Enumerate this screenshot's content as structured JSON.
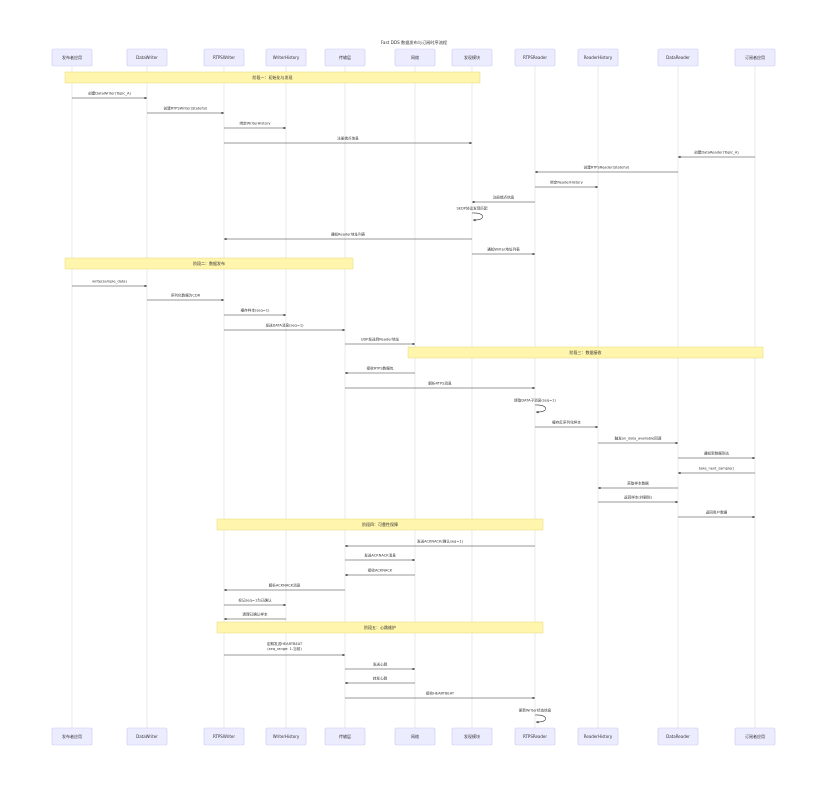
{
  "diagram": {
    "title": "Fast DDS 数据发布与订阅时序流程",
    "actors": [
      {
        "id": "pub_app",
        "label": "发布者应用"
      },
      {
        "id": "datawriter",
        "label": "DataWriter"
      },
      {
        "id": "rtpswriter",
        "label": "RTPSWriter"
      },
      {
        "id": "writerhistory",
        "label": "WriterHistory"
      },
      {
        "id": "transport",
        "label": "传输层"
      },
      {
        "id": "network",
        "label": "网络"
      },
      {
        "id": "discovery",
        "label": "发现模块"
      },
      {
        "id": "rtpsreader",
        "label": "RTPSReader"
      },
      {
        "id": "readerhistory",
        "label": "ReaderHistory"
      },
      {
        "id": "datareader",
        "label": "DataReader"
      },
      {
        "id": "sub_app",
        "label": "订阅者应用"
      }
    ],
    "steps": [
      {
        "kind": "phase",
        "label": "阶段一：初始化与发现",
        "from": "pub_app",
        "to": "discovery"
      },
      {
        "kind": "msg",
        "from": "pub_app",
        "to": "datawriter",
        "label": "创建DataWriter(Topic_A)"
      },
      {
        "kind": "msg",
        "from": "datawriter",
        "to": "rtpswriter",
        "label": "创建RTPSWriter(Stateful)"
      },
      {
        "kind": "msg",
        "from": "rtpswriter",
        "to": "writerhistory",
        "label": "绑定WriterHistory"
      },
      {
        "kind": "msg",
        "from": "rtpswriter",
        "to": "discovery",
        "label": "注册端点信息"
      },
      {
        "kind": "msg",
        "from": "sub_app",
        "to": "datareader",
        "label": "创建DataReader(Topic_A)"
      },
      {
        "kind": "msg",
        "from": "datareader",
        "to": "rtpsreader",
        "label": "创建RTPSReader(Stateful)"
      },
      {
        "kind": "msg",
        "from": "rtpsreader",
        "to": "readerhistory",
        "label": "绑定ReaderHistory"
      },
      {
        "kind": "msg",
        "from": "rtpsreader",
        "to": "discovery",
        "label": "注册端点信息"
      },
      {
        "kind": "self",
        "at": "discovery",
        "label": "SEDP协议发现匹配"
      },
      {
        "kind": "msg",
        "from": "discovery",
        "to": "rtpswriter",
        "label": "通知Reader地址列表"
      },
      {
        "kind": "msg",
        "from": "discovery",
        "to": "rtpsreader",
        "label": "通知Writer地址列表"
      },
      {
        "kind": "phase",
        "label": "阶段二：数据发布",
        "from": "pub_app",
        "to": "transport"
      },
      {
        "kind": "msg",
        "from": "pub_app",
        "to": "datawriter",
        "label": "write(sample_data)"
      },
      {
        "kind": "msg",
        "from": "datawriter",
        "to": "rtpswriter",
        "label": "序列化数据为CDR"
      },
      {
        "kind": "msg",
        "from": "rtpswriter",
        "to": "writerhistory",
        "label": "缓存样本(seq=1)"
      },
      {
        "kind": "msg",
        "from": "rtpswriter",
        "to": "transport",
        "label": "发送DATA消息(seq=1)"
      },
      {
        "kind": "msg",
        "from": "transport",
        "to": "network",
        "label": "UDP发送到Reader地址"
      },
      {
        "kind": "phase",
        "label": "阶段三：数据接收",
        "from": "network",
        "to": "sub_app"
      },
      {
        "kind": "msg",
        "from": "network",
        "to": "transport",
        "label": "接收RTPS数据包"
      },
      {
        "kind": "msg",
        "from": "transport",
        "to": "rtpsreader",
        "label": "解析RTPS消息"
      },
      {
        "kind": "self",
        "at": "rtpsreader",
        "label": "提取DATA子消息(seq=1)"
      },
      {
        "kind": "msg",
        "from": "rtpsreader",
        "to": "readerhistory",
        "label": "缓存反序列化样本"
      },
      {
        "kind": "msg",
        "from": "readerhistory",
        "to": "datareader",
        "label": "触发on_data_available回调"
      },
      {
        "kind": "msg",
        "from": "datareader",
        "to": "sub_app",
        "label": "通知新数据到达"
      },
      {
        "kind": "msg",
        "from": "sub_app",
        "to": "datareader",
        "label": "take_next_sample()"
      },
      {
        "kind": "msg",
        "from": "datareader",
        "to": "readerhistory",
        "label": "获取样本数据"
      },
      {
        "kind": "msg",
        "from": "readerhistory",
        "to": "datareader",
        "label": "返回样本(并删除)"
      },
      {
        "kind": "msg",
        "from": "datareader",
        "to": "sub_app",
        "label": "返回用户数据"
      },
      {
        "kind": "phase",
        "label": "阶段四：可靠性保障",
        "from": "rtpswriter",
        "to": "rtpsreader"
      },
      {
        "kind": "msg",
        "from": "rtpsreader",
        "to": "transport",
        "label": "发送ACKNACK(确认seq=1)"
      },
      {
        "kind": "msg",
        "from": "transport",
        "to": "network",
        "label": "发送ACKNACK消息"
      },
      {
        "kind": "msg",
        "from": "network",
        "to": "transport",
        "label": "接收ACKNACK"
      },
      {
        "kind": "msg",
        "from": "transport",
        "to": "rtpswriter",
        "label": "解析ACKNACK消息"
      },
      {
        "kind": "msg",
        "from": "rtpswriter",
        "to": "writerhistory",
        "label": "标记seq=1为已确认"
      },
      {
        "kind": "msg",
        "from": "writerhistory",
        "to": "rtpswriter",
        "label": "清理已确认样本"
      },
      {
        "kind": "phase",
        "label": "阶段五：心跳维护",
        "from": "rtpswriter",
        "to": "rtpsreader"
      },
      {
        "kind": "msg",
        "from": "rtpswriter",
        "to": "transport",
        "label": "定期发送HEARTBEAT",
        "label2": "(seq_range: 1-当前)"
      },
      {
        "kind": "msg",
        "from": "transport",
        "to": "network",
        "label": "发送心跳"
      },
      {
        "kind": "msg",
        "from": "network",
        "to": "transport",
        "label": "转发心跳"
      },
      {
        "kind": "msg",
        "from": "transport",
        "to": "rtpsreader",
        "label": "接收HEARTBEAT"
      },
      {
        "kind": "self",
        "at": "rtpsreader",
        "label": "更新Writer状态信息"
      }
    ]
  }
}
